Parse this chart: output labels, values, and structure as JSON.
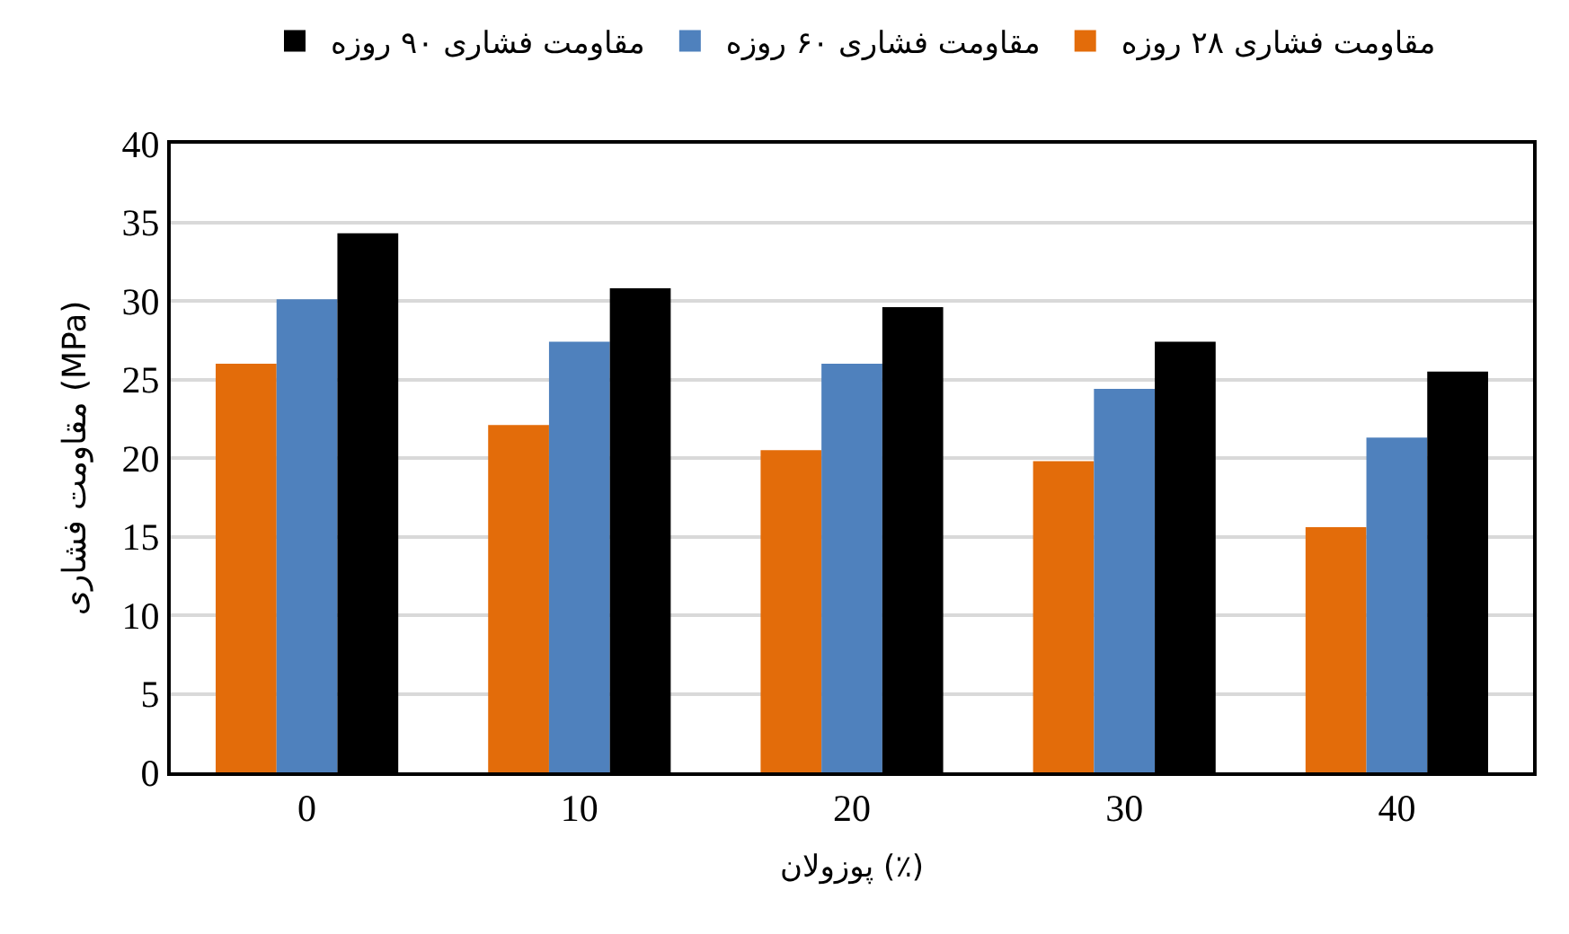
{
  "chart_data": {
    "type": "bar",
    "xlabel": "پوزولان (٪)",
    "ylabel": "مقاومت فشاری (MPa)",
    "categories": [
      "0",
      "10",
      "20",
      "30",
      "40"
    ],
    "series": [
      {
        "name": "مقاومت فشاری ۲۸ روزه",
        "color": "#e36c0a",
        "values": [
          26.0,
          22.1,
          20.5,
          19.8,
          15.6
        ]
      },
      {
        "name": "مقاومت فشاری ۶۰ روزه",
        "color": "#4f81bd",
        "values": [
          30.1,
          27.4,
          26.0,
          24.4,
          21.3
        ]
      },
      {
        "name": "مقاومت فشاری ۹۰ روزه",
        "color": "#000000",
        "values": [
          34.3,
          30.8,
          29.6,
          27.4,
          25.5
        ]
      }
    ],
    "ylim": [
      0,
      40
    ],
    "yticks": [
      0,
      5,
      10,
      15,
      20,
      25,
      30,
      35,
      40
    ],
    "grid": "y",
    "legend": "top"
  }
}
